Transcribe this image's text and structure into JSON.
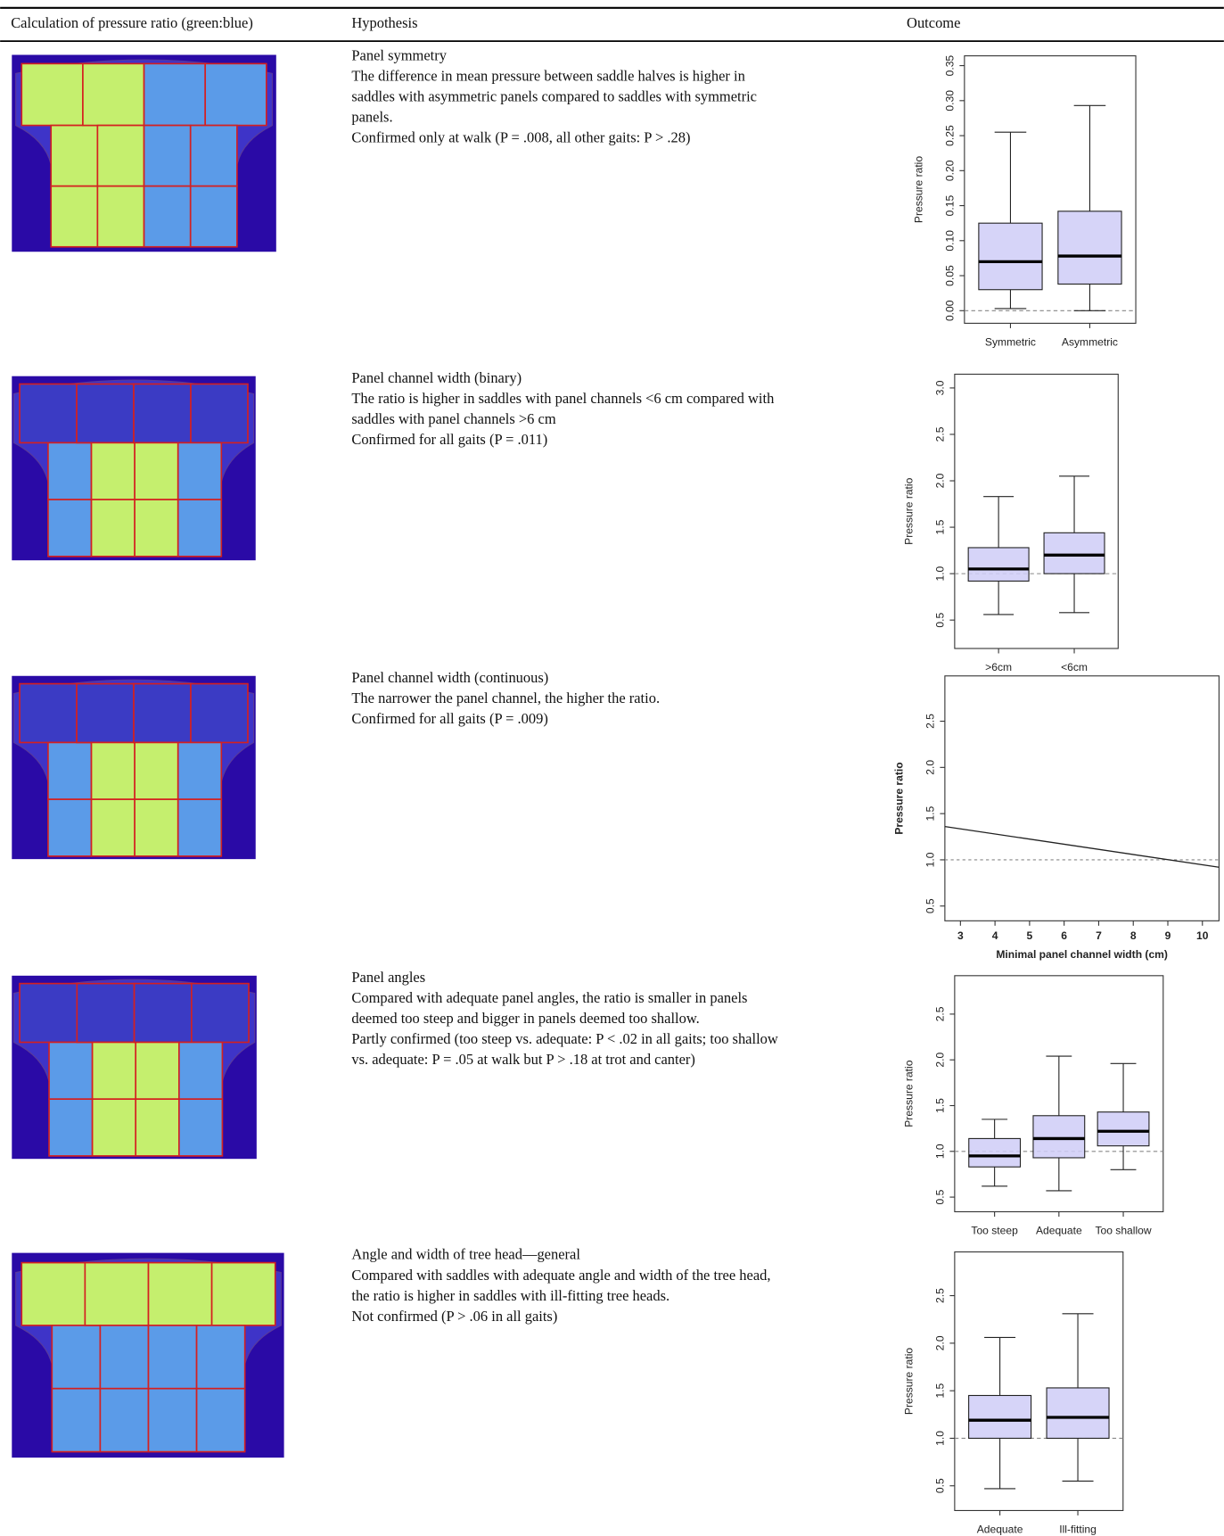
{
  "header": {
    "columns": [
      "Calculation of pressure ratio (green:blue)",
      "Hypothesis",
      "Outcome"
    ]
  },
  "rows": [
    {
      "hypothesis": {
        "title": "Panel symmetry",
        "lines": [
          "The difference in mean pressure between saddle halves is higher in",
          "saddles with asymmetric panels compared to saddles with symmetric",
          "panels.",
          "Confirmed only at walk (P = .008, all other gaits: P > .28)"
        ]
      },
      "outcome": {
        "type": "box",
        "ylabel": "Pressure ratio",
        "categories": [
          "Symmetric",
          "Asymmetric"
        ],
        "ylim": [
          -0.018,
          0.364
        ],
        "yticks": [
          {
            "value": 0,
            "label": "0.00"
          },
          {
            "value": 0.05,
            "label": "0.05"
          },
          {
            "value": 0.1,
            "label": "0.10"
          },
          {
            "value": 0.15,
            "label": "0.15"
          },
          {
            "value": 0.2,
            "label": "0.20"
          },
          {
            "value": 0.25,
            "label": "0.25"
          },
          {
            "value": 0.3,
            "label": "0.30"
          },
          {
            "value": 0.35,
            "label": "0.35"
          }
        ],
        "refline": 0,
        "boxes": [
          {
            "low": 0.003,
            "q1": 0.03,
            "median": 0.07,
            "q3": 0.125,
            "high": 0.255
          },
          {
            "low": 0,
            "q1": 0.038,
            "median": 0.078,
            "q3": 0.142,
            "high": 0.293
          }
        ]
      }
    },
    {
      "hypothesis": {
        "title": "Panel channel width (binary)",
        "lines": [
          "The ratio is higher in saddles with panel channels <6 cm compared with",
          "saddles with panel channels >6 cm",
          "Confirmed for all gaits (P = .011)"
        ]
      },
      "outcome": {
        "type": "box",
        "ylabel": "Pressure ratio",
        "categories": [
          ">6cm",
          "<6cm"
        ],
        "ylim": [
          0.194,
          3.148
        ],
        "yticks": [
          0.5,
          {
            "value": 1,
            "label": "1.0"
          },
          1.5,
          {
            "value": 2,
            "label": "2.0"
          },
          2.5,
          {
            "value": 3,
            "label": "3.0"
          }
        ],
        "refline": 1,
        "boxes": [
          {
            "low": 0.56,
            "q1": 0.92,
            "median": 1.05,
            "q3": 1.28,
            "high": 1.83
          },
          {
            "low": 0.58,
            "q1": 1.0,
            "median": 1.2,
            "q3": 1.44,
            "high": 2.05
          }
        ]
      }
    },
    {
      "hypothesis": {
        "title": "Panel channel width (continuous)",
        "lines": [
          "The narrower the panel channel, the higher the ratio.",
          "Confirmed for all gaits (P = .009)"
        ]
      },
      "outcome": {
        "type": "scatter",
        "ylabel": "Pressure ratio",
        "xlabel": "Minimal panel channel width (cm)",
        "xlim": [
          2.55,
          10.48
        ],
        "ylim": [
          0.34,
          2.99
        ],
        "xticks": [
          3,
          4,
          5,
          6,
          7,
          8,
          9,
          10
        ],
        "yticks": [
          0.5,
          {
            "value": 1,
            "label": "1.0"
          },
          1.5,
          {
            "value": 2,
            "label": "2.0"
          },
          2.5
        ],
        "refline": 1,
        "fit": {
          "x": [
            2.55,
            10.48
          ],
          "y": [
            1.36,
            0.92
          ]
        }
      }
    },
    {
      "hypothesis": {
        "title": "Panel angles",
        "lines": [
          "Compared with adequate panel angles, the ratio is smaller in panels",
          "deemed too steep and bigger in panels deemed too shallow.",
          "Partly confirmed (too steep vs. adequate: P < .02 in all gaits; too shallow",
          "vs. adequate: P = .05 at walk but P > .18 at trot and canter)"
        ]
      },
      "outcome": {
        "type": "box",
        "ylabel": "Pressure ratio",
        "categories": [
          "Too steep",
          "Adequate",
          "Too shallow"
        ],
        "ylim": [
          0.34,
          2.92
        ],
        "yticks": [
          0.5,
          {
            "value": 1,
            "label": "1.0"
          },
          1.5,
          {
            "value": 2,
            "label": "2.0"
          },
          2.5
        ],
        "refline": 1,
        "boxes": [
          {
            "low": 0.62,
            "q1": 0.83,
            "median": 0.95,
            "q3": 1.14,
            "high": 1.35
          },
          {
            "low": 0.57,
            "q1": 0.93,
            "median": 1.14,
            "q3": 1.39,
            "high": 2.04
          },
          {
            "low": 0.8,
            "q1": 1.06,
            "median": 1.22,
            "q3": 1.43,
            "high": 1.96
          }
        ]
      }
    },
    {
      "hypothesis": {
        "title": "Angle and width of tree head—general",
        "lines": [
          "Compared with saddles with adequate angle and width of the tree head,",
          "the ratio is higher in saddles with ill-fitting tree heads.",
          "Not confirmed (P > .06 in all gaits)"
        ]
      },
      "outcome": {
        "type": "box",
        "ylabel": "Pressure ratio",
        "categories": [
          "Adequate",
          "Ill-fitting"
        ],
        "ylim": [
          0.24,
          2.96
        ],
        "yticks": [
          0.5,
          {
            "value": 1,
            "label": "1.0"
          },
          1.5,
          {
            "value": 2,
            "label": "2.0"
          },
          2.5
        ],
        "refline": 1,
        "boxes": [
          {
            "low": 0.47,
            "q1": 1.0,
            "median": 1.19,
            "q3": 1.45,
            "high": 2.06
          },
          {
            "low": 0.55,
            "q1": 1.0,
            "median": 1.22,
            "q3": 1.53,
            "high": 2.31
          }
        ]
      }
    }
  ]
}
